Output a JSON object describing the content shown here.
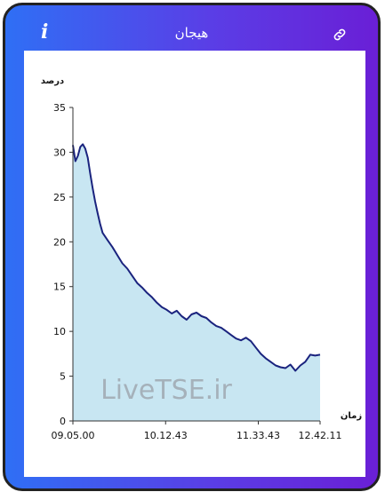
{
  "header": {
    "title": "هیجان",
    "info_icon": "i",
    "link_icon": "link-icon"
  },
  "colors": {
    "gradient_start": "#2f6ff5",
    "gradient_end": "#6a1fd6",
    "line": "#1a237e",
    "fill": "#c8e6f2"
  },
  "watermark": "LiveTSE.ir",
  "chart_data": {
    "type": "area",
    "ylabel": "درصد",
    "xlabel": "زمان",
    "ylim": [
      0,
      35
    ],
    "yticks": [
      0,
      5,
      10,
      15,
      20,
      25,
      30,
      35
    ],
    "xtick_labels": [
      "09.05.00",
      "10.12.43",
      "11.33.43",
      "12.42.11"
    ],
    "xtick_positions": [
      0,
      0.375,
      0.75,
      1
    ],
    "series": [
      {
        "points": [
          [
            0,
            30.8
          ],
          [
            0.01,
            29.0
          ],
          [
            0.02,
            29.6
          ],
          [
            0.03,
            30.6
          ],
          [
            0.04,
            30.9
          ],
          [
            0.05,
            30.4
          ],
          [
            0.06,
            29.4
          ],
          [
            0.07,
            27.6
          ],
          [
            0.08,
            26.0
          ],
          [
            0.09,
            24.5
          ],
          [
            0.1,
            23.2
          ],
          [
            0.11,
            22.0
          ],
          [
            0.12,
            21.0
          ],
          [
            0.14,
            20.2
          ],
          [
            0.16,
            19.4
          ],
          [
            0.18,
            18.5
          ],
          [
            0.2,
            17.6
          ],
          [
            0.22,
            17.0
          ],
          [
            0.24,
            16.2
          ],
          [
            0.26,
            15.4
          ],
          [
            0.28,
            14.9
          ],
          [
            0.3,
            14.3
          ],
          [
            0.32,
            13.8
          ],
          [
            0.34,
            13.2
          ],
          [
            0.36,
            12.7
          ],
          [
            0.38,
            12.4
          ],
          [
            0.4,
            12.0
          ],
          [
            0.42,
            12.3
          ],
          [
            0.44,
            11.7
          ],
          [
            0.46,
            11.3
          ],
          [
            0.48,
            11.9
          ],
          [
            0.5,
            12.1
          ],
          [
            0.52,
            11.7
          ],
          [
            0.54,
            11.5
          ],
          [
            0.56,
            11.0
          ],
          [
            0.58,
            10.6
          ],
          [
            0.6,
            10.4
          ],
          [
            0.62,
            10.0
          ],
          [
            0.64,
            9.6
          ],
          [
            0.66,
            9.2
          ],
          [
            0.68,
            9.0
          ],
          [
            0.7,
            9.3
          ],
          [
            0.72,
            8.9
          ],
          [
            0.74,
            8.2
          ],
          [
            0.76,
            7.5
          ],
          [
            0.78,
            7.0
          ],
          [
            0.8,
            6.6
          ],
          [
            0.82,
            6.2
          ],
          [
            0.84,
            6.0
          ],
          [
            0.86,
            5.9
          ],
          [
            0.88,
            6.3
          ],
          [
            0.9,
            5.6
          ],
          [
            0.92,
            6.2
          ],
          [
            0.94,
            6.6
          ],
          [
            0.96,
            7.4
          ],
          [
            0.98,
            7.3
          ],
          [
            1.0,
            7.4
          ]
        ]
      }
    ]
  }
}
